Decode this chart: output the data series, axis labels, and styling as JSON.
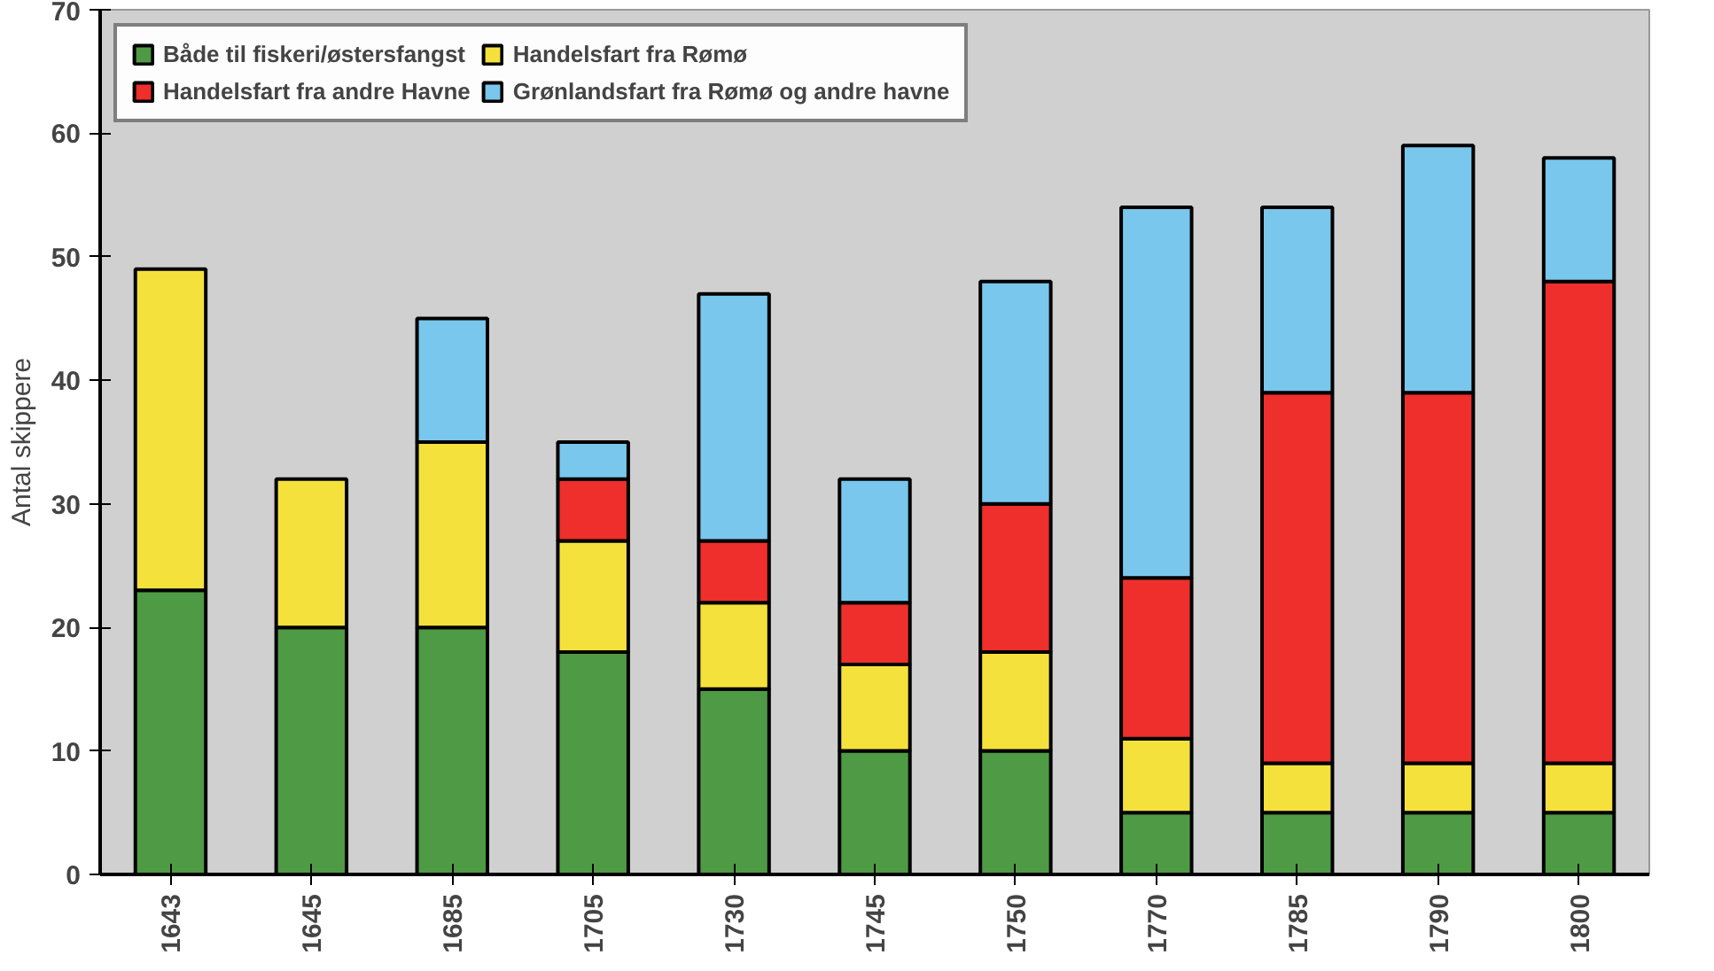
{
  "chart_data": {
    "type": "bar",
    "stacked": true,
    "ylabel": "Antal skippere",
    "categories": [
      "1643",
      "1645",
      "1685",
      "1705",
      "1730",
      "1745",
      "1750",
      "1770",
      "1785",
      "1790",
      "1800"
    ],
    "series": [
      {
        "name": "Både til fiskeri/østersfangst",
        "color": "#4f9a45",
        "values": [
          23,
          20,
          20,
          18,
          15,
          10,
          10,
          5,
          5,
          5,
          5
        ]
      },
      {
        "name": "Handelsfart fra Rømø",
        "color": "#f5e13c",
        "values": [
          26,
          12,
          15,
          9,
          7,
          7,
          8,
          6,
          4,
          4,
          4
        ]
      },
      {
        "name": "Handelsfart fra andre Havne",
        "color": "#ee2f2b",
        "values": [
          null,
          null,
          null,
          5,
          5,
          5,
          12,
          13,
          30,
          30,
          39
        ]
      },
      {
        "name": "Grønlandsfart fra Rømø og andre havne",
        "color": "#79c7ec",
        "values": [
          null,
          null,
          10,
          3,
          20,
          10,
          18,
          30,
          15,
          20,
          10
        ]
      }
    ],
    "ylim": [
      0,
      70
    ],
    "yticks": [
      0,
      10,
      20,
      30,
      40,
      50,
      60,
      70
    ],
    "grid": false,
    "legend": "top left"
  }
}
